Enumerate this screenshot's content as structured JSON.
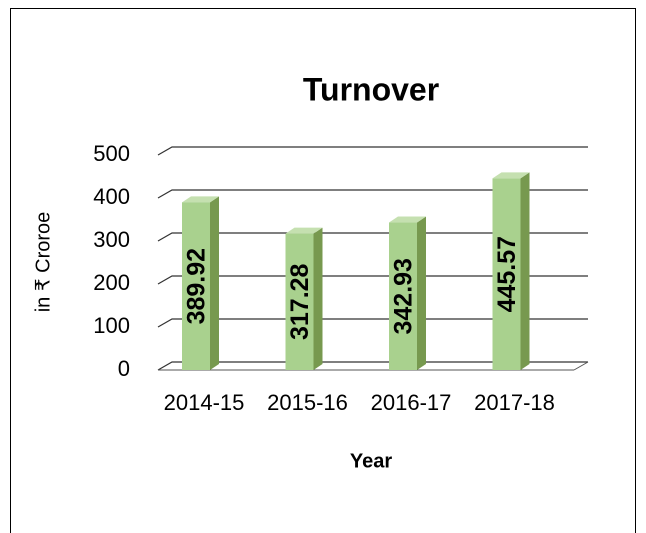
{
  "chart_data": {
    "type": "bar",
    "title": "Turnover",
    "x_label": "Year",
    "y_label": "in ₹ Croroe",
    "categories": [
      "2014-15",
      "2015-16",
      "2016-17",
      "2017-18"
    ],
    "values": [
      389.92,
      317.28,
      342.93,
      445.57
    ],
    "color": "#a9d18e",
    "ylim": [
      0,
      500
    ],
    "yticks": [
      0,
      100,
      200,
      300,
      400,
      500
    ],
    "grid": true
  }
}
